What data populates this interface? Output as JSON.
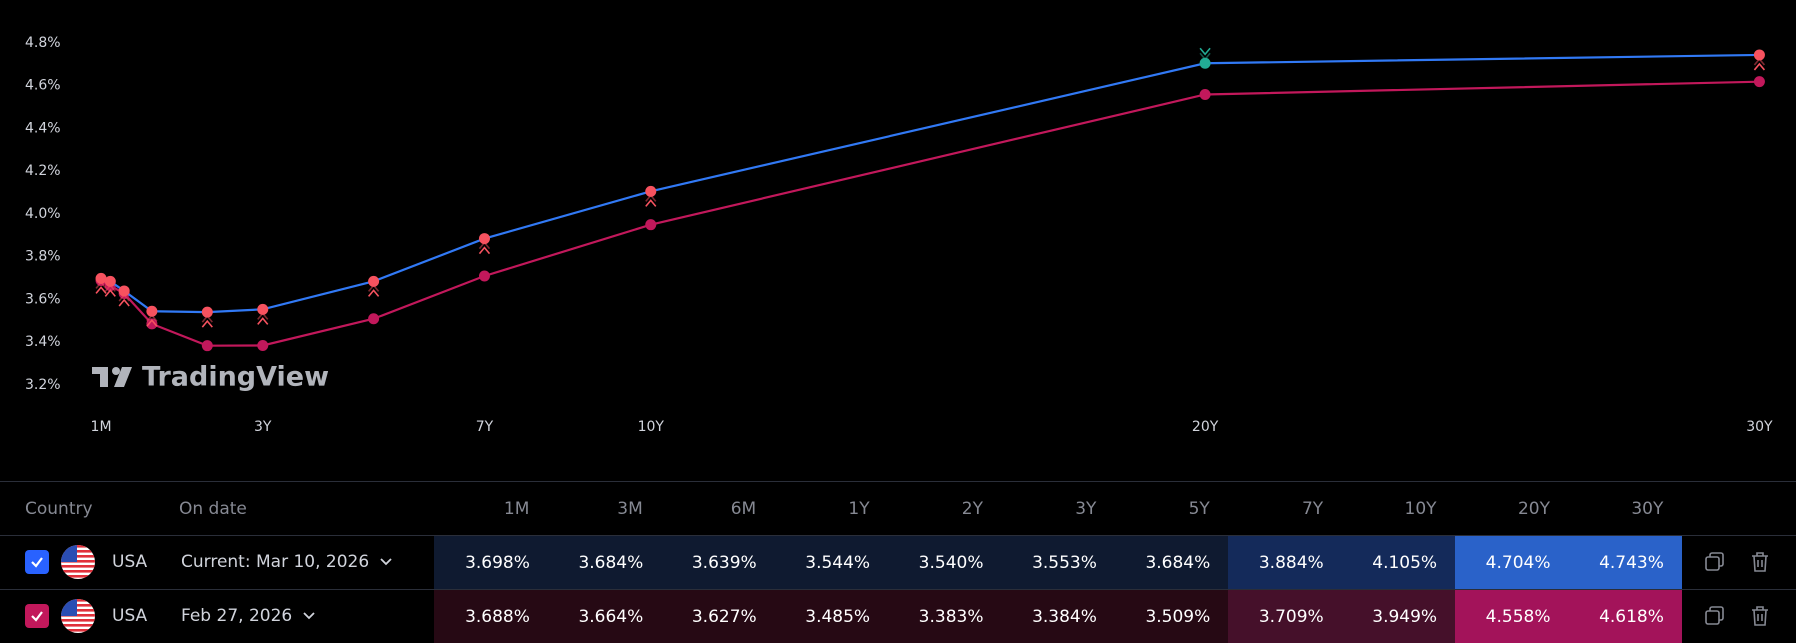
{
  "chart_data": {
    "type": "line",
    "watermark": "TradingView",
    "x": [
      0.083,
      0.25,
      0.5,
      1,
      2,
      3,
      5,
      7,
      10,
      20,
      30
    ],
    "xlim": [
      -1.74,
      30.66
    ],
    "xticks": [
      {
        "value": 0.083,
        "label": "1M"
      },
      {
        "value": 3,
        "label": "3Y"
      },
      {
        "value": 7,
        "label": "7Y"
      },
      {
        "value": 10,
        "label": "10Y"
      },
      {
        "value": 20,
        "label": "20Y"
      },
      {
        "value": 30,
        "label": "30Y"
      }
    ],
    "ylim": [
      2.75,
      5.0
    ],
    "yticks": [
      {
        "value": 3.2,
        "label": "3.2%"
      },
      {
        "value": 3.4,
        "label": "3.4%"
      },
      {
        "value": 3.6,
        "label": "3.6%"
      },
      {
        "value": 3.8,
        "label": "3.8%"
      },
      {
        "value": 4.0,
        "label": "4.0%"
      },
      {
        "value": 4.2,
        "label": "4.2%"
      },
      {
        "value": 4.4,
        "label": "4.4%"
      },
      {
        "value": 4.6,
        "label": "4.6%"
      },
      {
        "value": 4.8,
        "label": "4.8%"
      }
    ],
    "series": [
      {
        "color": "#3179f5",
        "values": [
          3.698,
          3.684,
          3.639,
          3.544,
          3.54,
          3.553,
          3.684,
          3.884,
          4.105,
          4.704,
          4.743
        ],
        "marker_colors": [
          "#f7525f",
          "#f7525f",
          "#f7525f",
          "#f7525f",
          "#f7525f",
          "#f7525f",
          "#f7525f",
          "#f7525f",
          "#f7525f",
          "#22ab94",
          "#f7525f"
        ],
        "changes": [
          "down",
          "down",
          "down",
          "down",
          "down",
          "down",
          "down",
          "down",
          "down",
          "up",
          "down"
        ]
      },
      {
        "color": "#c2185b",
        "values": [
          3.688,
          3.664,
          3.627,
          3.485,
          3.383,
          3.384,
          3.509,
          3.709,
          3.949,
          4.558,
          4.618
        ]
      }
    ]
  },
  "table": {
    "header": [
      "Country",
      "On date",
      "1M",
      "3M",
      "6M",
      "1Y",
      "2Y",
      "3Y",
      "5Y",
      "7Y",
      "10Y",
      "20Y",
      "30Y"
    ],
    "rows": [
      {
        "check_color": "#2962ff",
        "country": "USA",
        "date": "Current: Mar 10, 2026",
        "values": [
          "3.698%",
          "3.684%",
          "3.639%",
          "3.544%",
          "3.540%",
          "3.553%",
          "3.684%",
          "3.884%",
          "4.105%",
          "4.704%",
          "4.743%"
        ],
        "cell_colors": [
          "#0f1a30",
          "#0f1a30",
          "#0f1a30",
          "#0f1a30",
          "#0f1a30",
          "#0f1a30",
          "#0f1a30",
          "#142a5a",
          "#142a5a",
          "#2a62c9",
          "#2a62c9"
        ]
      },
      {
        "check_color": "#c2185b",
        "country": "USA",
        "date": "Feb 27, 2026",
        "values": [
          "3.688%",
          "3.664%",
          "3.627%",
          "3.485%",
          "3.383%",
          "3.384%",
          "3.509%",
          "3.709%",
          "3.949%",
          "4.558%",
          "4.618%"
        ],
        "cell_colors": [
          "#260914",
          "#260914",
          "#260914",
          "#260914",
          "#260914",
          "#260914",
          "#260914",
          "#45102a",
          "#45102a",
          "#a3135a",
          "#a3135a"
        ]
      }
    ]
  }
}
